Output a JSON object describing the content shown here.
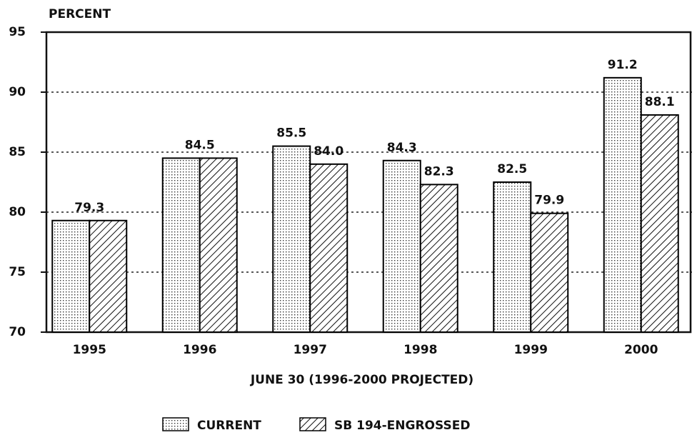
{
  "chart_data": {
    "type": "bar",
    "y_axis_label": "PERCENT",
    "x_axis_label": "JUNE 30 (1996-2000 PROJECTED)",
    "categories": [
      "1995",
      "1996",
      "1997",
      "1998",
      "1999",
      "2000"
    ],
    "series": [
      {
        "name": "CURRENT",
        "color": "#000000",
        "pattern": "dots",
        "values": [
          79.3,
          84.5,
          85.5,
          84.3,
          82.5,
          91.2
        ],
        "value_labels": [
          "79.3",
          "84.5",
          "85.5",
          "84.3",
          "82.5",
          "91.2"
        ]
      },
      {
        "name": "SB 194-ENGROSSED",
        "color": "#000000",
        "pattern": "hatch",
        "values": [
          79.3,
          84.5,
          84.0,
          82.3,
          79.9,
          88.1
        ],
        "value_labels": [
          null,
          null,
          "84.0",
          "82.3",
          "79.9",
          "88.1"
        ]
      }
    ],
    "ylim": [
      70,
      95
    ],
    "yticks": [
      70,
      75,
      80,
      85,
      90,
      95
    ],
    "grid": true,
    "legend": "bottom"
  }
}
